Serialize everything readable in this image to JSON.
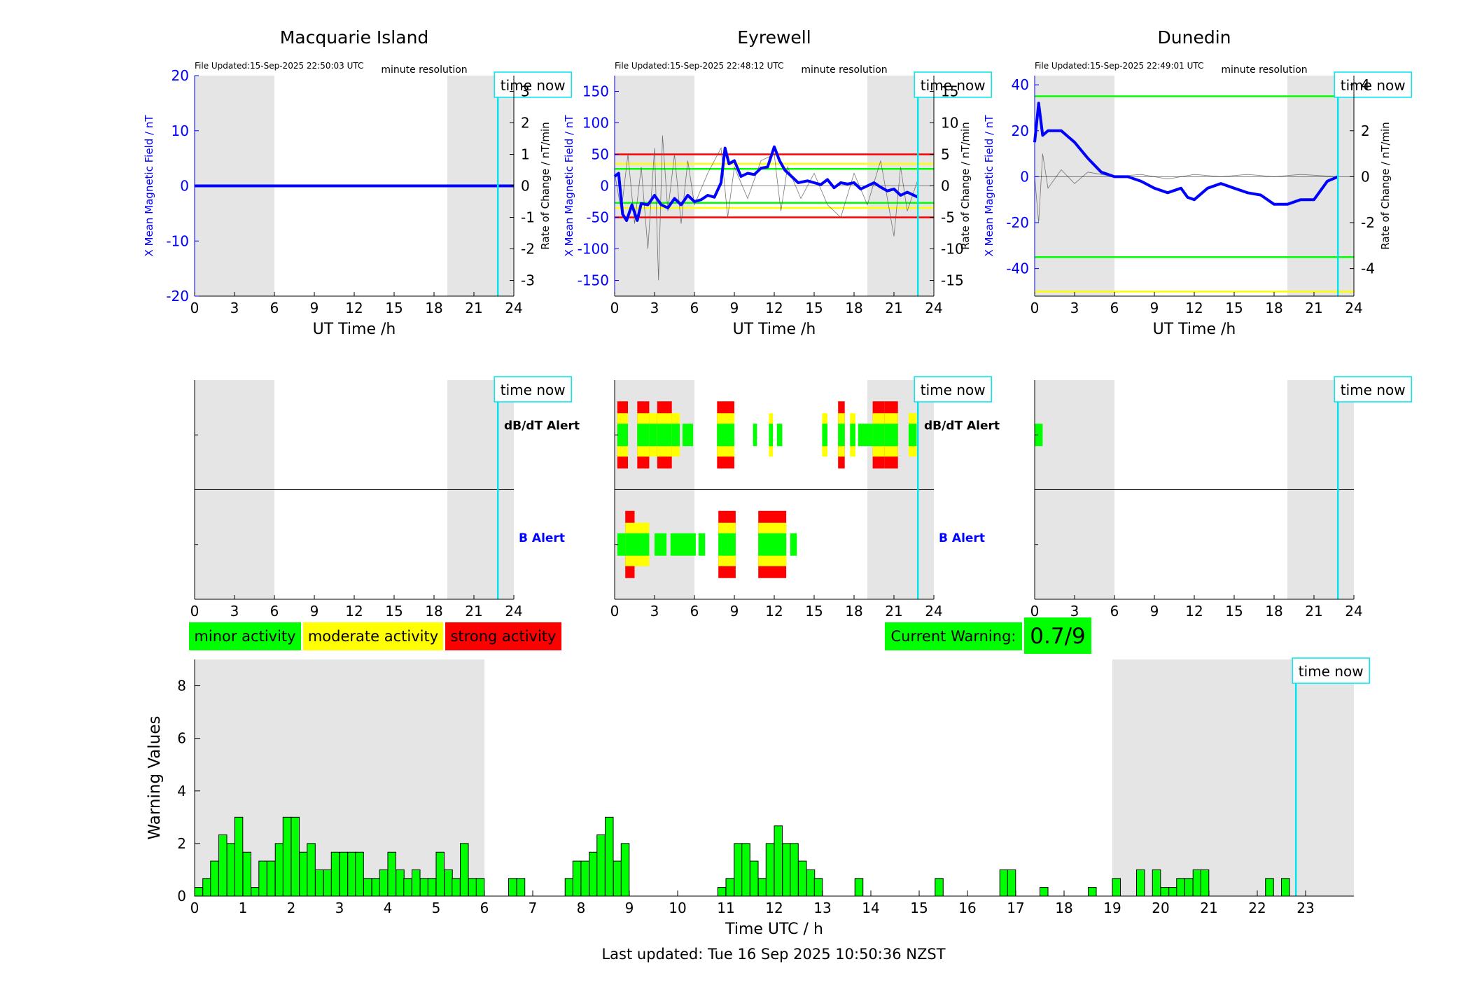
{
  "colors": {
    "shade": "#e5e5e5",
    "now_line": "#00e5ee",
    "primary_blue": "#0000ff",
    "minor_green": "#00ff00",
    "moderate_yellow": "#ffff00",
    "strong_red": "#ff0000",
    "warning_bar_green": "#00ff00"
  },
  "labels": {
    "time_now": "time now",
    "minute_resolution": "minute resolution",
    "x_axis_label": "UT Time /h",
    "left_ylabel": "X Mean Magnetic Field / nT",
    "right_ylabel": "Rate of Change / nT/min",
    "dbdt_alert": "dB/dT Alert",
    "b_alert": "B Alert",
    "legend_minor": "minor activity",
    "legend_moderate": "moderate activity",
    "legend_strong": "strong activity",
    "current_warning_label": "Current Warning:",
    "current_warning_value": "0.7/9",
    "bottom_xlabel": "Time UTC / h",
    "bottom_ylabel": "Warning Values",
    "footer": "Last updated: Tue 16 Sep 2025 10:50:36 NZST"
  },
  "chart_data": [
    {
      "id": "macquarie-field",
      "type": "line",
      "title": "Macquarie Island",
      "file_updated": "File Updated:15-Sep-2025 22:50:03 UTC",
      "xlim": [
        0,
        24
      ],
      "ylim_left": [
        -20,
        20
      ],
      "ylim_right": [
        -3.5,
        3.5
      ],
      "left_ticks": [
        -20,
        -10,
        0,
        10,
        20
      ],
      "right_ticks": [
        -3,
        -2,
        -1,
        0,
        1,
        2,
        3
      ],
      "x_ticks": [
        0,
        3,
        6,
        9,
        12,
        15,
        18,
        21,
        24
      ],
      "night_shading": [
        [
          0,
          6
        ],
        [
          19,
          24
        ]
      ],
      "now": 22.8,
      "thresholds": [],
      "mean_field": [
        [
          0,
          0
        ],
        [
          24,
          0
        ]
      ],
      "rate_of_change": []
    },
    {
      "id": "eyrewell-field",
      "type": "line",
      "title": "Eyrewell",
      "file_updated": "File Updated:15-Sep-2025 22:48:12 UTC",
      "xlim": [
        0,
        24
      ],
      "ylim_left": [
        -175,
        175
      ],
      "ylim_right": [
        -17.5,
        17.5
      ],
      "left_ticks": [
        -150,
        -100,
        -50,
        0,
        50,
        100,
        150
      ],
      "right_ticks": [
        -15,
        -10,
        -5,
        0,
        5,
        10,
        15
      ],
      "x_ticks": [
        0,
        3,
        6,
        9,
        12,
        15,
        18,
        21,
        24
      ],
      "night_shading": [
        [
          0,
          6
        ],
        [
          19,
          24
        ]
      ],
      "now": 22.8,
      "thresholds": [
        {
          "value": 50,
          "color": "#ff0000"
        },
        {
          "value": 35,
          "color": "#ffff00"
        },
        {
          "value": 27,
          "color": "#00ff00"
        },
        {
          "value": -27,
          "color": "#00ff00"
        },
        {
          "value": -35,
          "color": "#ffff00"
        },
        {
          "value": -50,
          "color": "#ff0000"
        }
      ],
      "mean_field": [
        [
          0,
          15
        ],
        [
          0.3,
          20
        ],
        [
          0.6,
          -45
        ],
        [
          0.9,
          -55
        ],
        [
          1.3,
          -30
        ],
        [
          1.7,
          -55
        ],
        [
          2.0,
          -28
        ],
        [
          2.5,
          -30
        ],
        [
          3.0,
          -15
        ],
        [
          3.5,
          -30
        ],
        [
          4.0,
          -35
        ],
        [
          4.5,
          -20
        ],
        [
          5.0,
          -30
        ],
        [
          5.5,
          -15
        ],
        [
          6.0,
          -25
        ],
        [
          6.5,
          -22
        ],
        [
          7.0,
          -15
        ],
        [
          7.5,
          -18
        ],
        [
          8.0,
          5
        ],
        [
          8.3,
          60
        ],
        [
          8.6,
          35
        ],
        [
          9.0,
          40
        ],
        [
          9.5,
          15
        ],
        [
          10.0,
          20
        ],
        [
          10.5,
          18
        ],
        [
          11.0,
          28
        ],
        [
          11.5,
          30
        ],
        [
          12.0,
          62
        ],
        [
          12.4,
          40
        ],
        [
          12.8,
          25
        ],
        [
          13.3,
          15
        ],
        [
          13.8,
          5
        ],
        [
          14.5,
          8
        ],
        [
          15.0,
          5
        ],
        [
          15.5,
          2
        ],
        [
          16.0,
          10
        ],
        [
          16.5,
          -3
        ],
        [
          17.0,
          5
        ],
        [
          17.5,
          3
        ],
        [
          18.0,
          5
        ],
        [
          18.5,
          -5
        ],
        [
          19.0,
          0
        ],
        [
          19.5,
          5
        ],
        [
          20.0,
          -2
        ],
        [
          20.5,
          -8
        ],
        [
          21.0,
          -5
        ],
        [
          21.5,
          -15
        ],
        [
          22.0,
          -10
        ],
        [
          22.8,
          -18
        ]
      ],
      "rate_of_change": [
        [
          0,
          2
        ],
        [
          0.5,
          -4
        ],
        [
          1.0,
          5
        ],
        [
          1.5,
          -6
        ],
        [
          2.0,
          3
        ],
        [
          2.5,
          -10
        ],
        [
          3.0,
          6
        ],
        [
          3.3,
          -15
        ],
        [
          3.6,
          8
        ],
        [
          4.0,
          -4
        ],
        [
          4.5,
          5
        ],
        [
          5.0,
          -6
        ],
        [
          5.5,
          4
        ],
        [
          6.0,
          -3
        ],
        [
          7.0,
          2
        ],
        [
          8.0,
          6
        ],
        [
          8.5,
          -5
        ],
        [
          9.0,
          3
        ],
        [
          10.0,
          -2
        ],
        [
          11.0,
          4
        ],
        [
          12.0,
          5
        ],
        [
          12.5,
          -4
        ],
        [
          13.0,
          3
        ],
        [
          14.0,
          -2
        ],
        [
          15.0,
          2
        ],
        [
          16.0,
          -3
        ],
        [
          17.0,
          -5
        ],
        [
          18.0,
          2
        ],
        [
          19.0,
          -3
        ],
        [
          20.0,
          4
        ],
        [
          21.0,
          -8
        ],
        [
          21.5,
          3
        ],
        [
          22.0,
          -4
        ],
        [
          22.8,
          1
        ]
      ]
    },
    {
      "id": "dunedin-field",
      "type": "line",
      "title": "Dunedin",
      "file_updated": "File Updated:15-Sep-2025 22:49:01 UTC",
      "xlim": [
        0,
        24
      ],
      "ylim_left": [
        -52,
        44
      ],
      "ylim_right": [
        -5.2,
        4.4
      ],
      "left_ticks": [
        -40,
        -20,
        0,
        20,
        40
      ],
      "right_ticks": [
        -4,
        -2,
        0,
        2,
        4
      ],
      "x_ticks": [
        0,
        3,
        6,
        9,
        12,
        15,
        18,
        21,
        24
      ],
      "night_shading": [
        [
          0,
          6
        ],
        [
          19,
          24
        ]
      ],
      "now": 22.8,
      "thresholds": [
        {
          "value": 35,
          "color": "#00ff00"
        },
        {
          "value": -35,
          "color": "#00ff00"
        },
        {
          "value": -50,
          "color": "#ffff00"
        }
      ],
      "mean_field": [
        [
          0,
          15
        ],
        [
          0.3,
          32
        ],
        [
          0.6,
          18
        ],
        [
          1.0,
          20
        ],
        [
          2.0,
          20
        ],
        [
          3.0,
          15
        ],
        [
          4.0,
          8
        ],
        [
          5.0,
          2
        ],
        [
          6.0,
          0
        ],
        [
          7.0,
          0
        ],
        [
          8.0,
          -2
        ],
        [
          9.0,
          -5
        ],
        [
          10.0,
          -7
        ],
        [
          11.0,
          -5
        ],
        [
          11.5,
          -9
        ],
        [
          12.0,
          -10
        ],
        [
          13.0,
          -5
        ],
        [
          14.0,
          -3
        ],
        [
          15.0,
          -5
        ],
        [
          16.0,
          -7
        ],
        [
          17.0,
          -8
        ],
        [
          18.0,
          -12
        ],
        [
          19.0,
          -12
        ],
        [
          20.0,
          -10
        ],
        [
          21.0,
          -10
        ],
        [
          22.0,
          -2
        ],
        [
          22.8,
          0
        ]
      ],
      "rate_of_change": [
        [
          0,
          0
        ],
        [
          0.3,
          -2
        ],
        [
          0.6,
          1
        ],
        [
          1.0,
          -0.5
        ],
        [
          2.0,
          0.3
        ],
        [
          3.0,
          -0.3
        ],
        [
          4.0,
          0.2
        ],
        [
          6.0,
          0
        ],
        [
          8.0,
          0.1
        ],
        [
          10.0,
          -0.1
        ],
        [
          12.0,
          0.1
        ],
        [
          14.0,
          0
        ],
        [
          16.0,
          0.1
        ],
        [
          18.0,
          0
        ],
        [
          20.0,
          0.1
        ],
        [
          22.8,
          0
        ]
      ]
    },
    {
      "id": "macquarie-alerts",
      "type": "heatmap",
      "xlim": [
        0,
        24
      ],
      "x_ticks": [
        0,
        3,
        6,
        9,
        12,
        15,
        18,
        21,
        24
      ],
      "night_shading": [
        [
          0,
          6
        ],
        [
          19,
          24
        ]
      ],
      "now": 22.8,
      "dbdt_alerts": [],
      "b_alerts": []
    },
    {
      "id": "eyrewell-alerts",
      "type": "heatmap",
      "xlim": [
        0,
        24
      ],
      "x_ticks": [
        0,
        3,
        6,
        9,
        12,
        15,
        18,
        21,
        24
      ],
      "night_shading": [
        [
          0,
          6
        ],
        [
          19,
          24
        ]
      ],
      "now": 22.8,
      "dbdt_alerts": [
        [
          0.2,
          1.0,
          3
        ],
        [
          1.7,
          2.6,
          3
        ],
        [
          2.6,
          3.2,
          2
        ],
        [
          3.2,
          4.3,
          3
        ],
        [
          4.3,
          4.9,
          2
        ],
        [
          5.1,
          5.9,
          1
        ],
        [
          7.7,
          9.0,
          3
        ],
        [
          10.4,
          10.7,
          1
        ],
        [
          11.6,
          11.9,
          2
        ],
        [
          12.2,
          12.6,
          1
        ],
        [
          15.6,
          16.0,
          2
        ],
        [
          16.8,
          17.3,
          3
        ],
        [
          17.7,
          18.1,
          2
        ],
        [
          18.3,
          19.4,
          1
        ],
        [
          19.4,
          20.3,
          3
        ],
        [
          20.3,
          21.3,
          3
        ],
        [
          22.1,
          22.7,
          2
        ]
      ],
      "b_alerts": [
        [
          0.2,
          0.8,
          1
        ],
        [
          0.8,
          1.5,
          3
        ],
        [
          1.5,
          2.6,
          2
        ],
        [
          3.0,
          3.9,
          1
        ],
        [
          4.2,
          6.1,
          1
        ],
        [
          6.3,
          6.8,
          1
        ],
        [
          7.8,
          9.1,
          3
        ],
        [
          10.8,
          12.9,
          3
        ],
        [
          13.2,
          13.7,
          1
        ]
      ]
    },
    {
      "id": "dunedin-alerts",
      "type": "heatmap",
      "xlim": [
        0,
        24
      ],
      "x_ticks": [
        0,
        3,
        6,
        9,
        12,
        15,
        18,
        21,
        24
      ],
      "night_shading": [
        [
          0,
          6
        ],
        [
          19,
          24
        ]
      ],
      "now": 22.8,
      "dbdt_alerts": [
        [
          0.0,
          0.6,
          1
        ]
      ],
      "b_alerts": []
    },
    {
      "id": "warning-values",
      "type": "bar",
      "xlabel": "Time UTC / h",
      "ylabel": "Warning Values",
      "xlim": [
        0,
        24
      ],
      "ylim": [
        0,
        9
      ],
      "y_ticks": [
        0,
        2,
        4,
        6,
        8
      ],
      "x_ticks": [
        0,
        1,
        2,
        3,
        4,
        5,
        6,
        7,
        8,
        9,
        10,
        11,
        12,
        13,
        14,
        15,
        16,
        17,
        18,
        19,
        20,
        21,
        22,
        23
      ],
      "bin_width": 0.1667,
      "night_shading": [
        [
          0,
          6
        ],
        [
          19,
          24
        ]
      ],
      "now": 22.8,
      "bar_starts": [
        0,
        0.17,
        0.33,
        0.5,
        0.67,
        0.83,
        1.0,
        1.17,
        1.33,
        1.5,
        1.67,
        1.83,
        2.0,
        2.17,
        2.33,
        2.5,
        2.67,
        2.83,
        3.0,
        3.17,
        3.33,
        3.5,
        3.67,
        3.83,
        4.0,
        4.17,
        4.33,
        4.5,
        4.67,
        4.83,
        5.0,
        5.17,
        5.33,
        5.5,
        5.67,
        5.83,
        6.5,
        6.67,
        7.67,
        7.83,
        8.0,
        8.17,
        8.33,
        8.5,
        8.67,
        8.83,
        10.83,
        11.0,
        11.17,
        11.33,
        11.5,
        11.67,
        11.83,
        12.0,
        12.17,
        12.33,
        12.5,
        12.67,
        12.83,
        13.67,
        15.33,
        16.67,
        16.83,
        17.5,
        18.5,
        19.0,
        19.5,
        19.83,
        20.0,
        20.17,
        20.33,
        20.5,
        20.67,
        20.83,
        22.17,
        22.5
      ],
      "values": [
        0.33,
        0.67,
        1.33,
        2.33,
        2.0,
        3.0,
        1.67,
        0.33,
        1.33,
        1.33,
        2.0,
        3.0,
        3.0,
        1.67,
        2.0,
        1.0,
        1.0,
        1.67,
        1.67,
        1.67,
        1.67,
        0.67,
        0.67,
        1.0,
        1.67,
        1.0,
        0.67,
        1.0,
        0.67,
        0.67,
        1.67,
        1.0,
        0.67,
        2.0,
        0.67,
        0.67,
        0.67,
        0.67,
        0.67,
        1.33,
        1.33,
        1.67,
        2.33,
        3.0,
        1.33,
        2.0,
        0.33,
        0.67,
        2.0,
        2.0,
        1.33,
        0.67,
        2.0,
        2.67,
        2.0,
        2.0,
        1.33,
        1.0,
        0.67,
        0.67,
        0.67,
        1.0,
        1.0,
        0.33,
        0.33,
        0.67,
        1.0,
        1.0,
        0.33,
        0.33,
        0.67,
        0.67,
        1.0,
        1.0,
        0.67,
        0.67
      ]
    }
  ]
}
